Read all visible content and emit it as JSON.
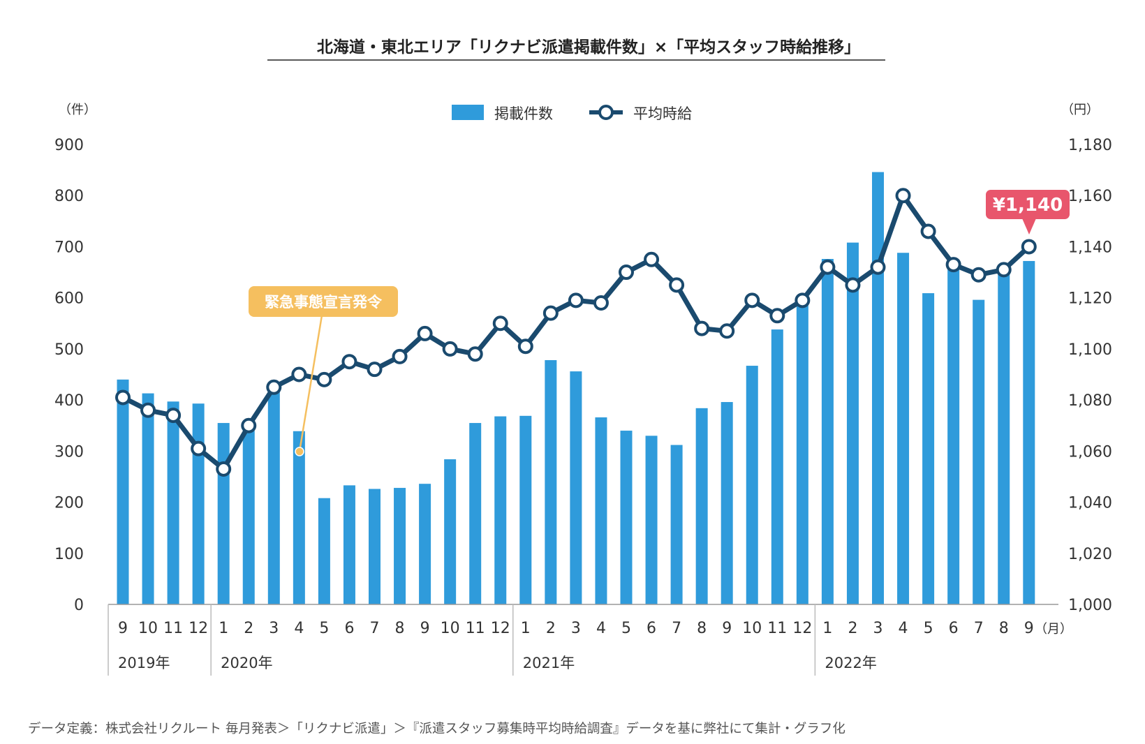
{
  "title": "北海道・東北エリア「リクナビ派遣掲載件数」×「平均スタッフ時給推移」",
  "left_unit": "（件）",
  "right_unit": "（円）",
  "month_unit": "（月）",
  "legend": {
    "bar": "掲載件数",
    "line": "平均時給"
  },
  "annotation": {
    "event": "緊急事態宣言発令",
    "latest": "¥1,140"
  },
  "footnote": "データ定義：株式会社リクルート 毎月発表＞「リクナビ派遣」＞『派遣スタッフ募集時平均時給調査』データを基に弊社にて集計・グラフ化",
  "colors": {
    "bar": "#2f9bdb",
    "line": "#1a4a6e",
    "event": "#f5bf5f",
    "latest": "#e8566c"
  },
  "chart_data": {
    "type": "bar",
    "title": "北海道・東北エリア「リクナビ派遣掲載件数」×「平均スタッフ時給推移」",
    "categories": [
      "9",
      "10",
      "11",
      "12",
      "1",
      "2",
      "3",
      "4",
      "5",
      "6",
      "7",
      "8",
      "9",
      "10",
      "11",
      "12",
      "1",
      "2",
      "3",
      "4",
      "5",
      "6",
      "7",
      "8",
      "9",
      "10",
      "11",
      "12",
      "1",
      "2",
      "3",
      "4",
      "5",
      "6",
      "7",
      "8",
      "9"
    ],
    "years": [
      {
        "label": "2019年",
        "start": 0,
        "end": 3
      },
      {
        "label": "2020年",
        "start": 4,
        "end": 15
      },
      {
        "label": "2021年",
        "start": 16,
        "end": 27
      },
      {
        "label": "2022年",
        "start": 28,
        "end": 36
      }
    ],
    "series": [
      {
        "name": "掲載件数",
        "type": "bar",
        "axis": "left",
        "values": [
          440,
          413,
          397,
          393,
          355,
          344,
          423,
          339,
          208,
          233,
          226,
          228,
          236,
          284,
          355,
          368,
          369,
          478,
          456,
          366,
          340,
          330,
          312,
          384,
          396,
          467,
          538,
          588,
          676,
          708,
          846,
          688,
          609,
          665,
          596,
          654,
          672
        ]
      },
      {
        "name": "平均時給",
        "type": "line",
        "axis": "right",
        "values": [
          1081,
          1076,
          1074,
          1061,
          1053,
          1070,
          1085,
          1090,
          1088,
          1095,
          1092,
          1097,
          1106,
          1100,
          1098,
          1110,
          1101,
          1114,
          1119,
          1118,
          1130,
          1135,
          1125,
          1108,
          1107,
          1119,
          1113,
          1119,
          1132,
          1125,
          1132,
          1160,
          1146,
          1133,
          1129,
          1131,
          1140
        ]
      }
    ],
    "ylim_left": [
      0,
      900
    ],
    "yticks_left": [
      "0",
      "100",
      "200",
      "300",
      "400",
      "500",
      "600",
      "700",
      "800",
      "900"
    ],
    "ylim_right": [
      1000,
      1180
    ],
    "yticks_right": [
      "1,000",
      "1,020",
      "1,040",
      "1,060",
      "1,080",
      "1,100",
      "1,120",
      "1,140",
      "1,160",
      "1,180"
    ],
    "grid": false,
    "legend_position": "top-center"
  }
}
